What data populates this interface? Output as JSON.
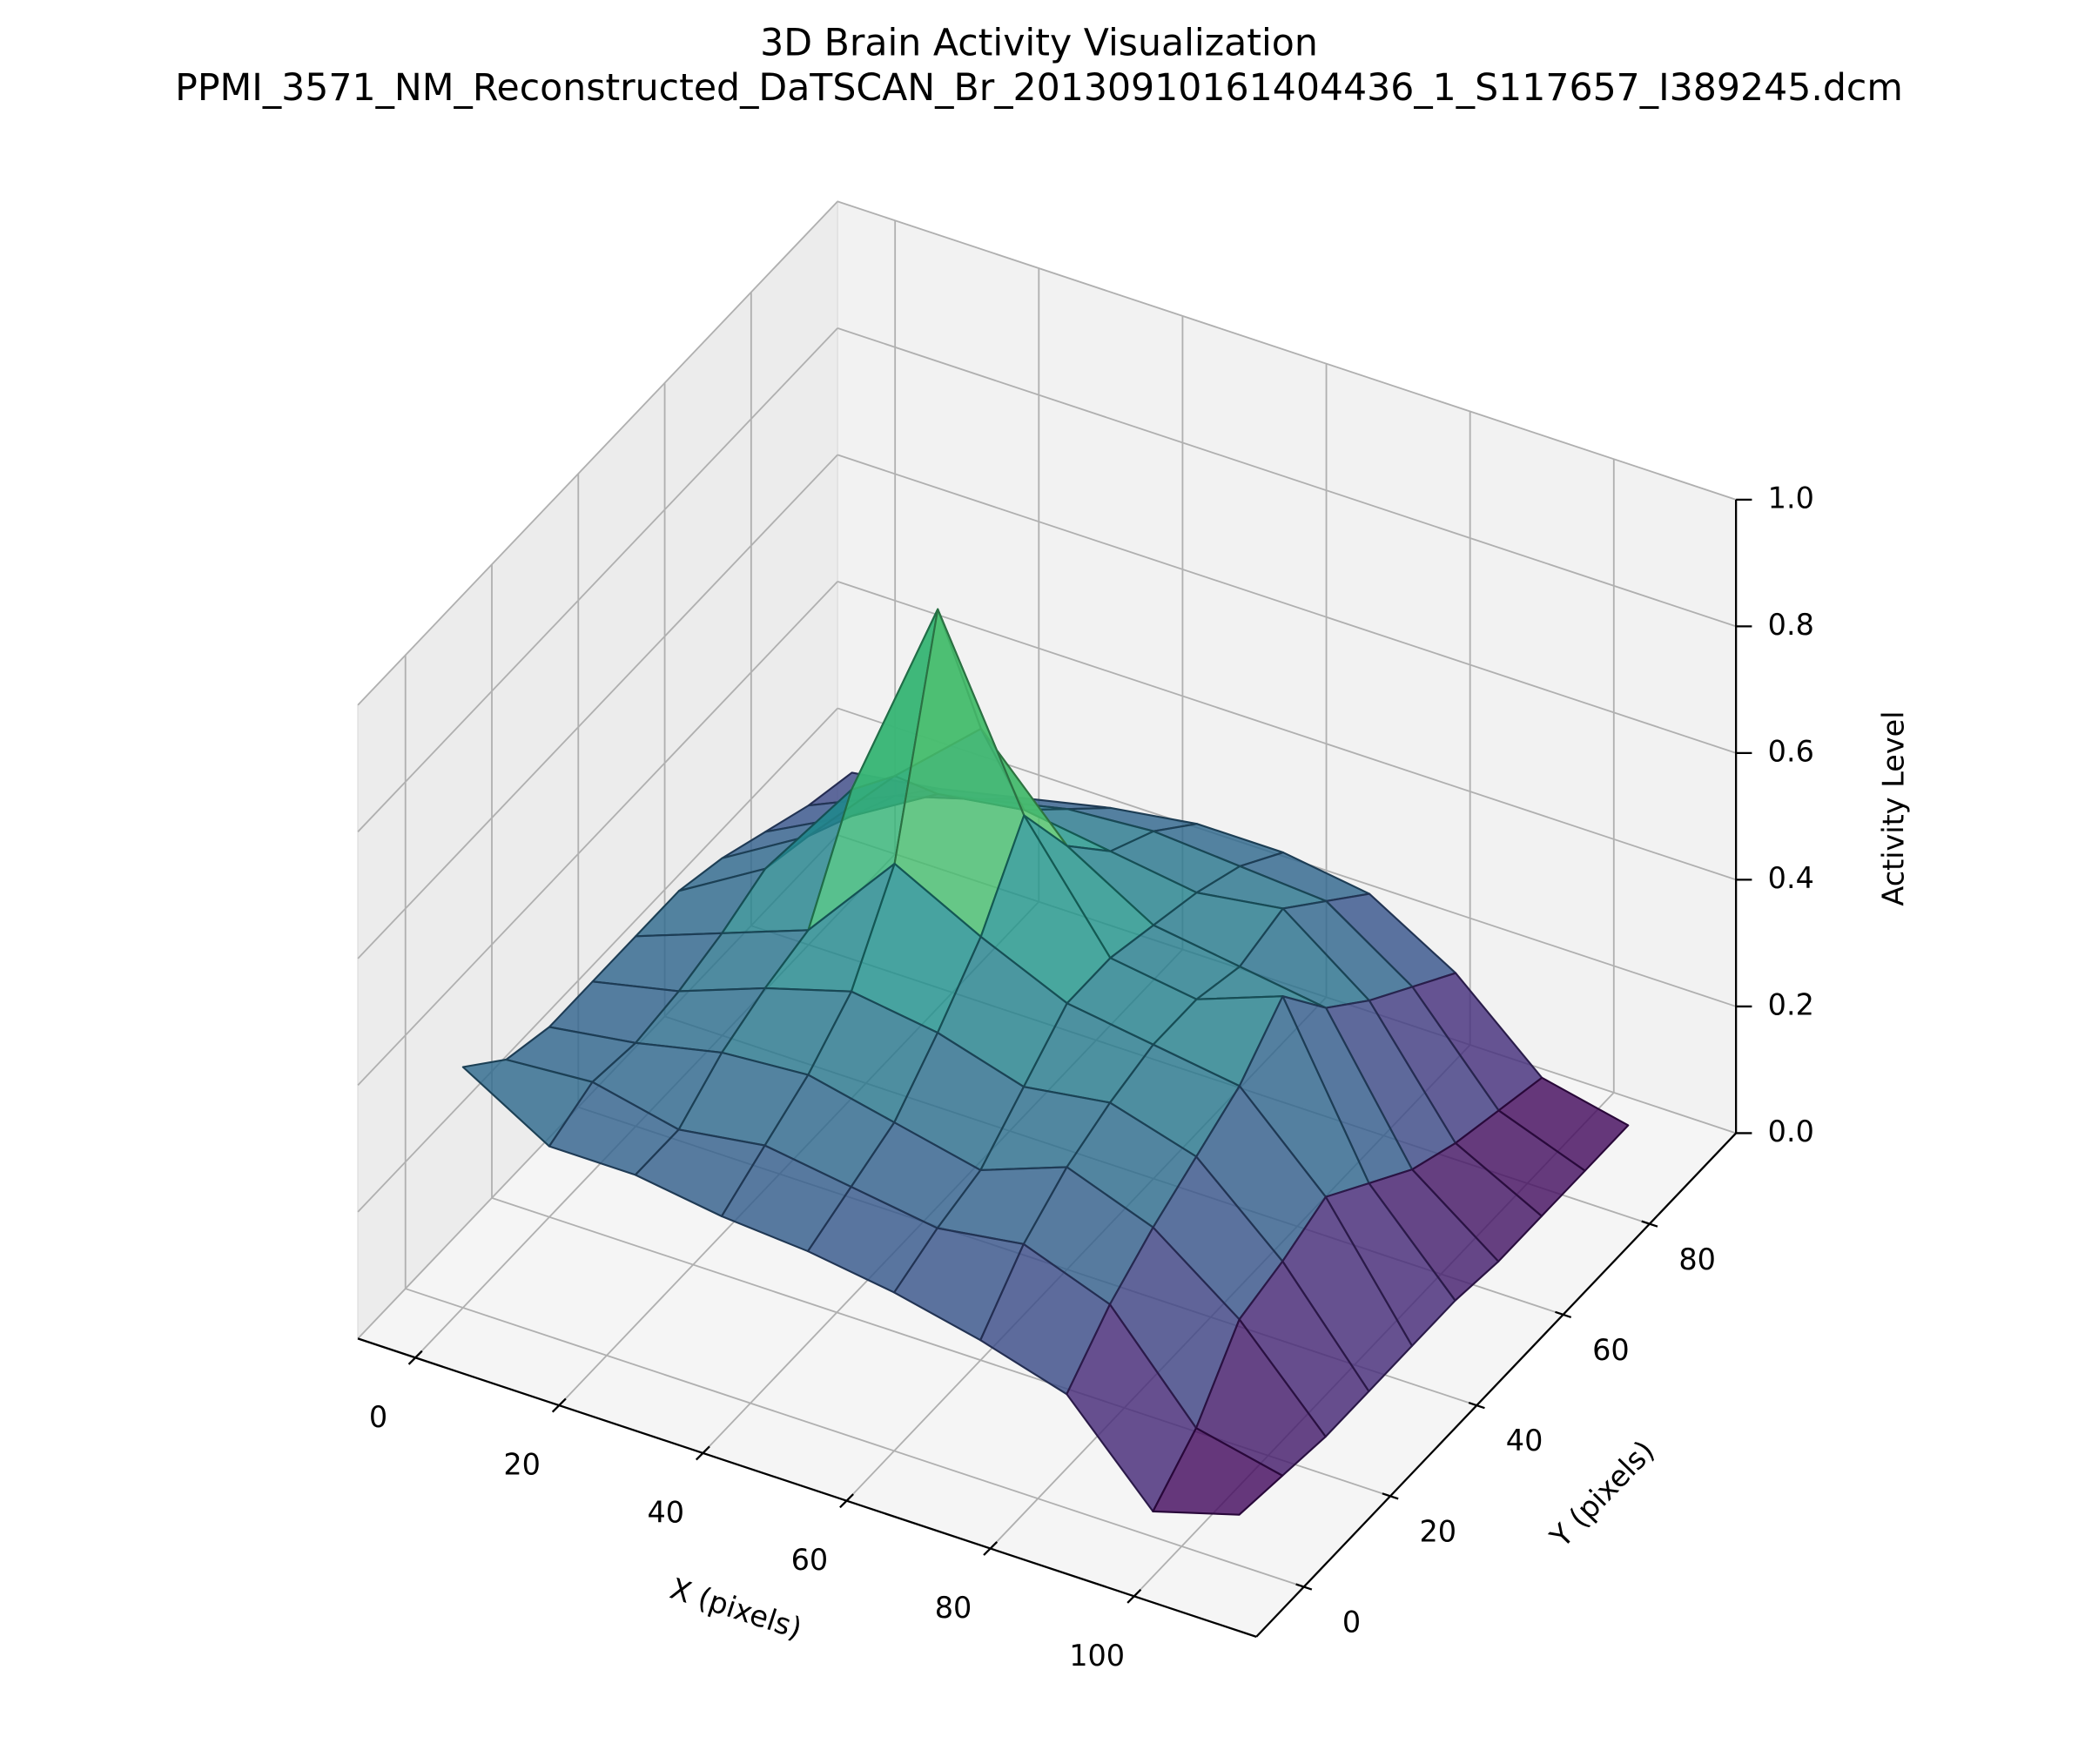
{
  "chart_data": {
    "type": "surface3d",
    "title": "3D Brain Activity Visualization",
    "subtitle": "PPMI_3571_NM_Reconstructed_DaTSCAN_Br_20130910161404436_1_S117657_I389245.dcm",
    "xlabel": "X (pixels)",
    "ylabel": "Y (pixels)",
    "zlabel": "Activity Level",
    "colormap": "viridis",
    "x": [
      0,
      12,
      24,
      36,
      48,
      60,
      72,
      84,
      96,
      108
    ],
    "y": [
      0,
      10,
      20,
      30,
      40,
      50,
      60,
      70,
      80,
      90
    ],
    "z": [
      [
        0.38,
        0.3,
        0.3,
        0.28,
        0.27,
        0.25,
        0.22,
        0.18,
        0.04,
        0.08
      ],
      [
        0.32,
        0.33,
        0.3,
        0.32,
        0.3,
        0.28,
        0.3,
        0.25,
        0.1,
        0.07
      ],
      [
        0.3,
        0.32,
        0.35,
        0.36,
        0.33,
        0.3,
        0.35,
        0.3,
        0.2,
        0.06
      ],
      [
        0.3,
        0.33,
        0.38,
        0.42,
        0.4,
        0.36,
        0.38,
        0.34,
        0.22,
        0.06
      ],
      [
        0.3,
        0.35,
        0.4,
        0.55,
        0.48,
        0.42,
        0.4,
        0.38,
        0.25,
        0.06
      ],
      [
        0.3,
        0.38,
        0.55,
        0.88,
        0.6,
        0.42,
        0.4,
        0.45,
        0.2,
        0.06
      ],
      [
        0.28,
        0.36,
        0.5,
        0.62,
        0.48,
        0.4,
        0.38,
        0.36,
        0.15,
        0.05
      ],
      [
        0.25,
        0.32,
        0.4,
        0.42,
        0.4,
        0.38,
        0.4,
        0.3,
        0.12,
        0.05
      ],
      [
        0.22,
        0.28,
        0.32,
        0.35,
        0.36,
        0.35,
        0.34,
        0.25,
        0.1,
        0.05
      ],
      [
        0.2,
        0.22,
        0.25,
        0.28,
        0.3,
        0.3,
        0.28,
        0.2,
        0.08,
        0.05
      ]
    ],
    "xlim": [
      -8,
      117
    ],
    "ylim": [
      -11,
      100
    ],
    "zlim": [
      0,
      1.0
    ],
    "xticks": [
      0,
      20,
      40,
      60,
      80,
      100
    ],
    "yticks": [
      0,
      20,
      40,
      60,
      80
    ],
    "zticks": [
      {
        "value": 0,
        "label": "0.0"
      },
      {
        "value": 0.2,
        "label": "0.2"
      },
      {
        "value": 0.4,
        "label": "0.4"
      },
      {
        "value": 0.6,
        "label": "0.6"
      },
      {
        "value": 0.8,
        "label": "0.8"
      },
      {
        "value": 1.0,
        "label": "1.0"
      }
    ],
    "grid": true
  }
}
